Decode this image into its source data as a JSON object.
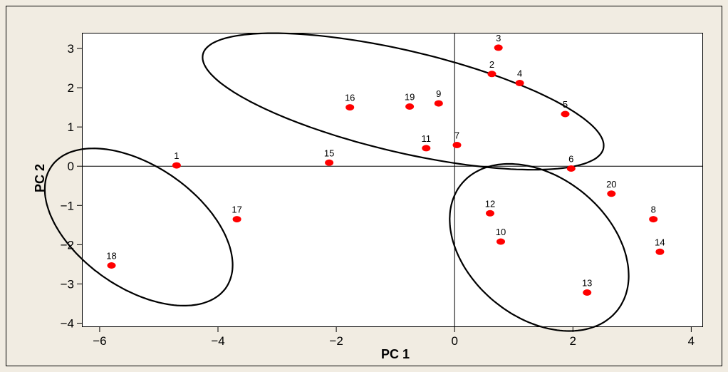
{
  "colors": {
    "outer_background": "#f1ece2",
    "plot_background": "#ffffff",
    "point_color": "#ff0000",
    "frame_color": "#000000"
  },
  "chart_data": {
    "type": "scatter",
    "title": "",
    "xlabel": "PC 1",
    "ylabel": "PC 2",
    "xlim": [
      -6.3,
      4.2
    ],
    "ylim": [
      -4.1,
      3.4
    ],
    "xticks": [
      -6,
      -4,
      -2,
      0,
      2,
      4
    ],
    "yticks": [
      -4,
      -3,
      -2,
      -1,
      0,
      1,
      2,
      3
    ],
    "reference_lines": {
      "x": 0,
      "y": 0
    },
    "grid": false,
    "legend": "none",
    "points": [
      {
        "label": "1",
        "x": -4.7,
        "y": 0.02
      },
      {
        "label": "2",
        "x": 0.63,
        "y": 2.35
      },
      {
        "label": "3",
        "x": 0.74,
        "y": 3.02
      },
      {
        "label": "4",
        "x": 1.1,
        "y": 2.12
      },
      {
        "label": "5",
        "x": 1.87,
        "y": 1.33
      },
      {
        "label": "6",
        "x": 1.97,
        "y": -0.06
      },
      {
        "label": "7",
        "x": 0.04,
        "y": 0.54
      },
      {
        "label": "8",
        "x": 3.36,
        "y": -1.35
      },
      {
        "label": "9",
        "x": -0.27,
        "y": 1.6
      },
      {
        "label": "10",
        "x": 0.78,
        "y": -1.92
      },
      {
        "label": "11",
        "x": -0.48,
        "y": 0.46
      },
      {
        "label": "12",
        "x": 0.6,
        "y": -1.2
      },
      {
        "label": "13",
        "x": 2.24,
        "y": -3.22
      },
      {
        "label": "14",
        "x": 3.47,
        "y": -2.18
      },
      {
        "label": "15",
        "x": -2.12,
        "y": 0.09
      },
      {
        "label": "16",
        "x": -1.77,
        "y": 1.5
      },
      {
        "label": "17",
        "x": -3.68,
        "y": -1.35
      },
      {
        "label": "18",
        "x": -5.8,
        "y": -2.53
      },
      {
        "label": "19",
        "x": -0.76,
        "y": 1.52
      },
      {
        "label": "20",
        "x": 2.65,
        "y": -0.7
      }
    ],
    "ellipses": [
      {
        "name": "left-ellipse",
        "cx": -5.34,
        "cy": -1.55,
        "rx": 2.23,
        "ry": 1.25,
        "angle": -58
      },
      {
        "name": "top-ellipse",
        "cx": -0.87,
        "cy": 1.65,
        "rx": 3.6,
        "ry": 1.25,
        "angle": -21
      },
      {
        "name": "bottom-right-ellipse",
        "cx": 1.43,
        "cy": -2.07,
        "rx": 2.23,
        "ry": 1.36,
        "angle": -68
      }
    ]
  }
}
